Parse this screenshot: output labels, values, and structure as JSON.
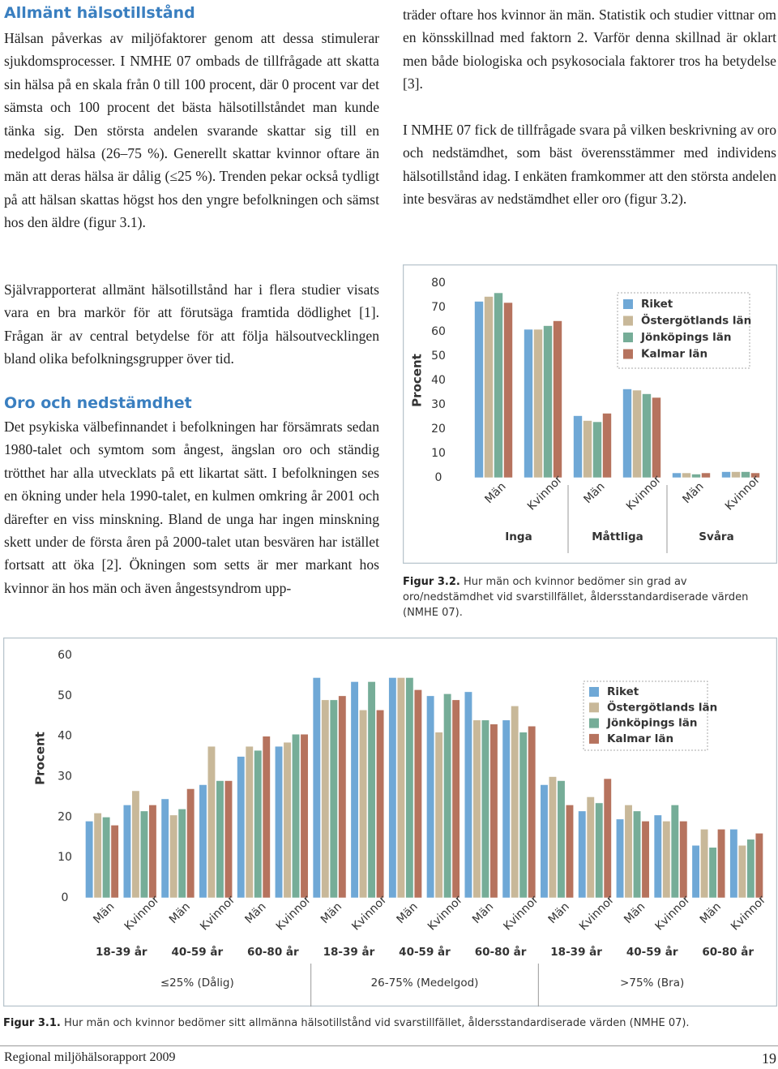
{
  "document": {
    "left": {
      "heading1": "Allmänt hälsotillstånd",
      "p1": "Hälsan påverkas av miljöfaktorer genom att dessa stimulerar sjukdomsprocesser. I NMHE 07 ombads de tillfrågade att skatta sin hälsa på en skala från 0 till 100 procent, där 0 procent var det sämsta och 100 procent det bästa hälsotillståndet man kunde tänka sig. Den största andelen svarande skattar sig till en medelgod hälsa (26–75 %). Generellt skattar kvinnor oftare än män att deras hälsa är dålig (≤25 %). Trenden pekar också tydligt på att hälsan skattas högst hos den yngre befolkningen och sämst hos den äldre (figur 3.1).",
      "p2": "Självrapporterat allmänt hälsotillstånd har i flera studier visats vara en bra markör för att förutsäga framtida dödlighet [1]. Frågan är av central betydelse för att följa hälsoutvecklingen bland olika befolkningsgrupper över tid.",
      "heading2": "Oro och nedstämdhet",
      "p3": "Det psykiska välbefinnandet i befolkningen har försämrats sedan 1980-talet och symtom som ångest, ängslan oro och ständig trötthet har alla utvecklats på ett likartat sätt. I befolkningen ses en ökning under hela 1990-talet, en kulmen omkring år 2001 och därefter en viss minskning. Bland de unga har ingen minskning skett under de första åren på 2000-talet utan besvären har istället fortsatt att öka [2]. Ökningen som setts är mer markant hos kvinnor än hos män och även ångestsyndrom upp-"
    },
    "right": {
      "p1": "träder oftare hos kvinnor än män. Statistik och studier vittnar om en könsskillnad med faktorn 2. Varför denna skillnad är oklart men både biologiska och psykosociala faktorer tros ha betydelse [3].",
      "p2": "I NMHE 07 fick de tillfrågade svara på vilken beskrivning av oro och nedstämdhet, som bäst överensstämmer med individens hälsotillstånd idag. I enkäten framkommer att den största andelen inte besväras av nedstämdhet eller oro (figur 3.2)."
    },
    "captions": [
      {
        "label": "Figur 3.2.",
        "text": "Hur män och kvinnor bedömer sin grad av oro/nedstämdhet vid svarstillfället, åldersstandardiserade värden (NMHE 07)."
      },
      {
        "label": "Figur 3.1.",
        "text": "Hur män och kvinnor bedömer sitt allmänna hälsotillstånd vid svarstillfället, åldersstandardiserade värden (NMHE 07)."
      }
    ],
    "footer": {
      "title": "Regional miljöhälsorapport 2009",
      "page": 19
    }
  },
  "chart_data": [
    {
      "type": "bar",
      "y_label": "Procent",
      "categories": [
        "Män",
        "Kvinnor",
        "Män",
        "Kvinnor",
        "Män",
        "Kvinnor"
      ],
      "groups": [
        "Inga",
        "Måttliga",
        "Svåra"
      ],
      "series": [
        {
          "name": "Riket",
          "color": "#6fa8d6",
          "values": [
            72.5,
            61,
            25.5,
            36.5,
            2,
            2.5
          ]
        },
        {
          "name": "Östergötlands län",
          "color": "#c8b899",
          "values": [
            74.5,
            61,
            23.5,
            36,
            2,
            2.5
          ]
        },
        {
          "name": "Jönköpings län",
          "color": "#76ad98",
          "values": [
            76,
            62.5,
            23,
            34.5,
            1.5,
            2.5
          ]
        },
        {
          "name": "Kalmar län",
          "color": "#b6735e",
          "values": [
            72,
            64.5,
            26.5,
            33,
            2,
            2
          ]
        }
      ],
      "ylim": [
        0,
        80
      ],
      "yticks": [
        0,
        10,
        20,
        30,
        40,
        50,
        60,
        70,
        80
      ],
      "legend": "upper right"
    },
    {
      "type": "bar",
      "y_label": "Procent",
      "categories": [
        "Män",
        "Kvinnor",
        "Män",
        "Kvinnor",
        "Män",
        "Kvinnor",
        "Män",
        "Kvinnor",
        "Män",
        "Kvinnor",
        "Män",
        "Kvinnor",
        "Män",
        "Kvinnor",
        "Män",
        "Kvinnor",
        "Män",
        "Kvinnor"
      ],
      "subgroups": [
        "18-39 år",
        "40-59 år",
        "60-80 år",
        "18-39 år",
        "40-59 år",
        "60-80 år",
        "18-39 år",
        "40-59 år",
        "60-80 år"
      ],
      "groups": [
        "≤25% (Dålig)",
        "26-75% (Medelgod)",
        ">75% (Bra)"
      ],
      "series": [
        {
          "name": "Riket",
          "color": "#6fa8d6",
          "values": [
            19,
            23,
            24.5,
            28,
            35,
            37.5,
            54.5,
            53.5,
            54.5,
            50,
            51,
            44,
            28,
            21.5,
            19.5,
            20.5,
            13,
            17
          ]
        },
        {
          "name": "Östergötlands län",
          "color": "#c8b899",
          "values": [
            21,
            26.5,
            20.5,
            37.5,
            37.5,
            38.5,
            49,
            46.5,
            54.5,
            41,
            44,
            47.5,
            30,
            25,
            23,
            19,
            17,
            13
          ]
        },
        {
          "name": "Jönköpings län",
          "color": "#76ad98",
          "values": [
            20,
            21.5,
            22,
            29,
            36.5,
            40.5,
            49,
            53.5,
            54.5,
            50.5,
            44,
            41,
            29,
            23.5,
            21.5,
            23,
            12.5,
            14.5
          ]
        },
        {
          "name": "Kalmar län",
          "color": "#b6735e",
          "values": [
            18,
            23,
            27,
            29,
            40,
            40.5,
            50,
            46.5,
            51.5,
            49,
            43,
            42.5,
            23,
            29.5,
            19,
            19,
            17,
            16
          ]
        }
      ],
      "ylim": [
        0,
        60
      ],
      "yticks": [
        0,
        10,
        20,
        30,
        40,
        50,
        60
      ],
      "legend": "upper right"
    }
  ]
}
